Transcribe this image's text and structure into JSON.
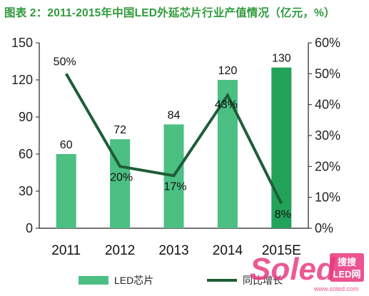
{
  "chart_data": {
    "title": "图表 2：2011-2015年中国LED外延芯片行业产值情况（亿元，%）",
    "type": "bar",
    "categories": [
      "2011",
      "2012",
      "2013",
      "2014",
      "2015E"
    ],
    "series": [
      {
        "name": "LED芯片",
        "type": "bar",
        "axis": "left",
        "values": [
          60,
          72,
          84,
          120,
          130
        ],
        "labels": [
          "60",
          "72",
          "84",
          "120",
          "130"
        ]
      },
      {
        "name": "同比增长",
        "type": "line",
        "axis": "right",
        "values": [
          50,
          20,
          17,
          43,
          8
        ],
        "labels": [
          "50%",
          "20%",
          "17%",
          "43%",
          "8%"
        ]
      }
    ],
    "y_left": {
      "range": [
        0,
        150
      ],
      "ticks": [
        "0",
        "30",
        "60",
        "90",
        "120",
        "150"
      ]
    },
    "y_right": {
      "range": [
        0,
        60
      ],
      "ticks": [
        "0%",
        "10%",
        "20%",
        "30%",
        "40%",
        "50%",
        "60%"
      ]
    },
    "grid": false,
    "legend_position": "bottom",
    "colors": {
      "bar": "#4cbf82",
      "bar_last": "#23a35a",
      "line": "#1e5e38",
      "axis": "#222222",
      "title": "#2f9a3c"
    }
  },
  "watermark": {
    "logo_text": "Soled",
    "box_text_top": "搜搜",
    "box_text_bottom": "LED网",
    "url": "www.soled.com"
  }
}
